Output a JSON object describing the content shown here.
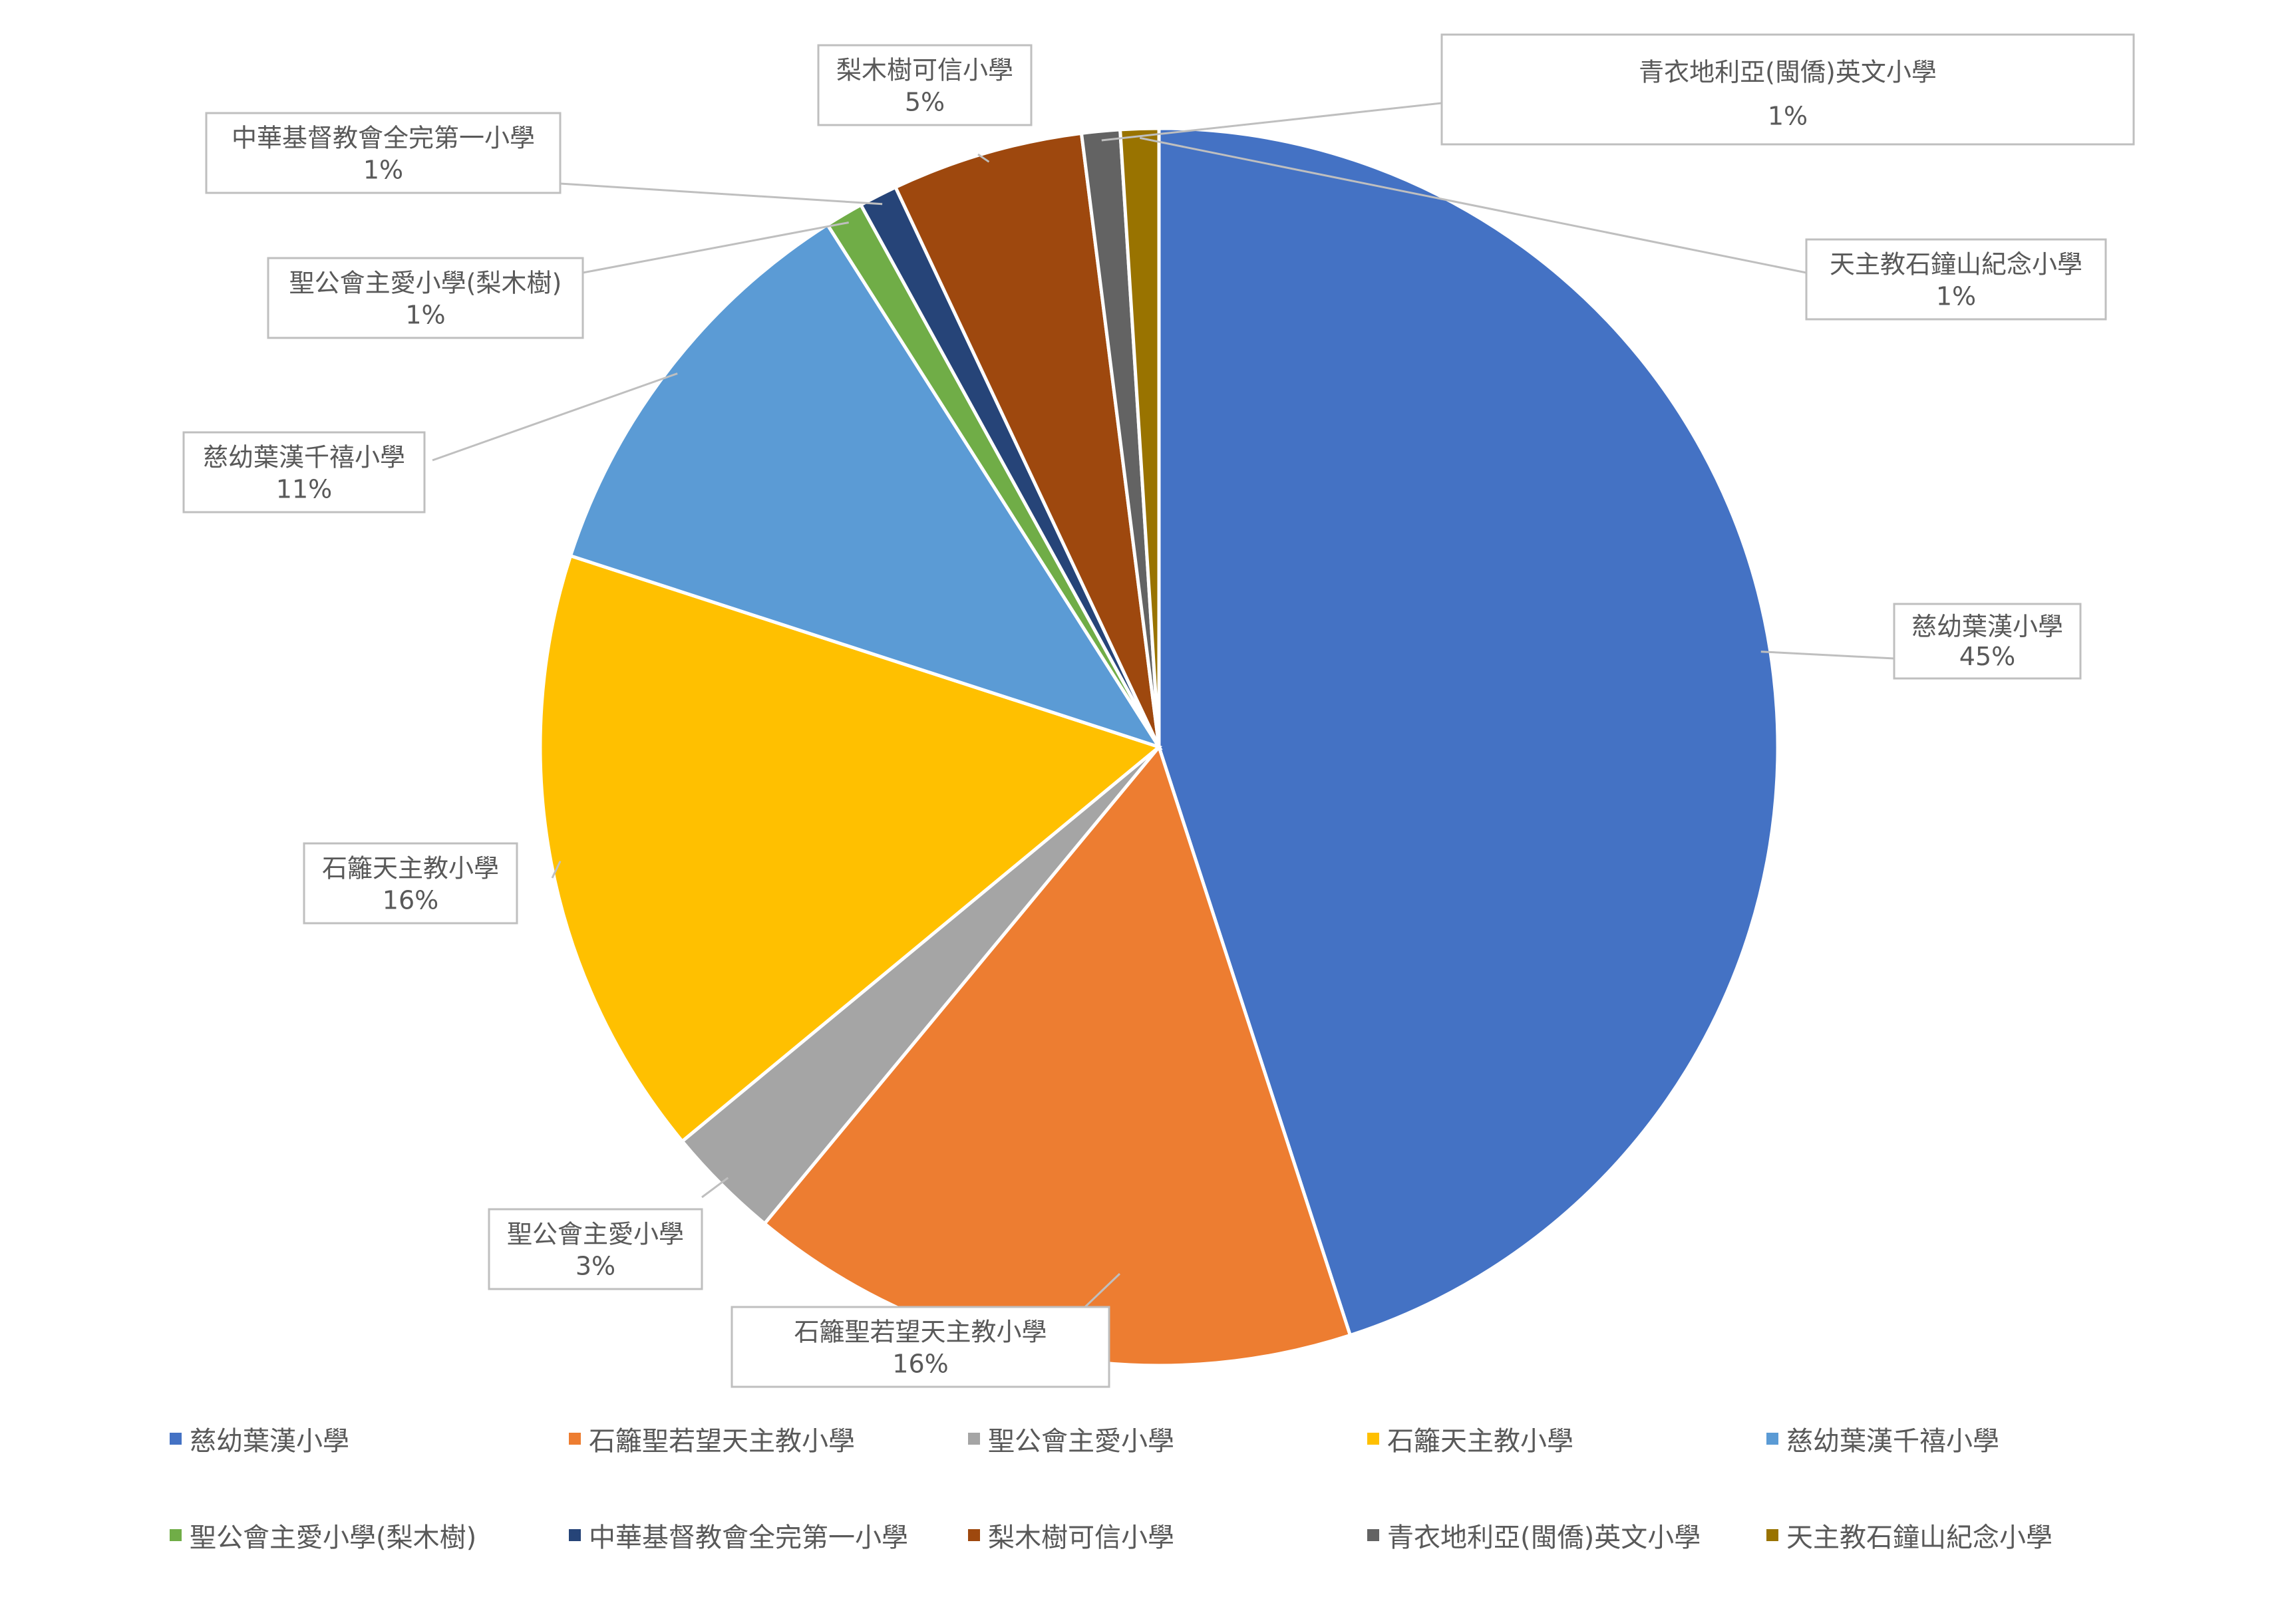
{
  "chart_data": {
    "type": "pie",
    "title": "",
    "legend_position": "bottom",
    "slices": [
      {
        "label": "慈幼葉漢小學",
        "percent_label": "45%",
        "value": 45,
        "color": "#4472C4"
      },
      {
        "label": "石籬聖若望天主教小學",
        "percent_label": "16%",
        "value": 16,
        "color": "#ED7D31"
      },
      {
        "label": "聖公會主愛小學",
        "percent_label": "3%",
        "value": 3,
        "color": "#A5A5A5"
      },
      {
        "label": "石籬天主教小學",
        "percent_label": "16%",
        "value": 16,
        "color": "#FFC000"
      },
      {
        "label": "慈幼葉漢千禧小學",
        "percent_label": "11%",
        "value": 11,
        "color": "#5B9BD5"
      },
      {
        "label": "聖公會主愛小學(梨木樹)",
        "percent_label": "1%",
        "value": 1,
        "color": "#70AD47"
      },
      {
        "label": "中華基督教會全完第一小學",
        "percent_label": "1%",
        "value": 1,
        "color": "#264478"
      },
      {
        "label": "梨木樹可信小學",
        "percent_label": "5%",
        "value": 5,
        "color": "#9E480E"
      },
      {
        "label": "青衣地利亞(閩僑)英文小學",
        "percent_label": "1%",
        "value": 1,
        "color": "#636363"
      },
      {
        "label": "天主教石鐘山紀念小學",
        "percent_label": "1%",
        "value": 1,
        "color": "#997300"
      }
    ]
  }
}
